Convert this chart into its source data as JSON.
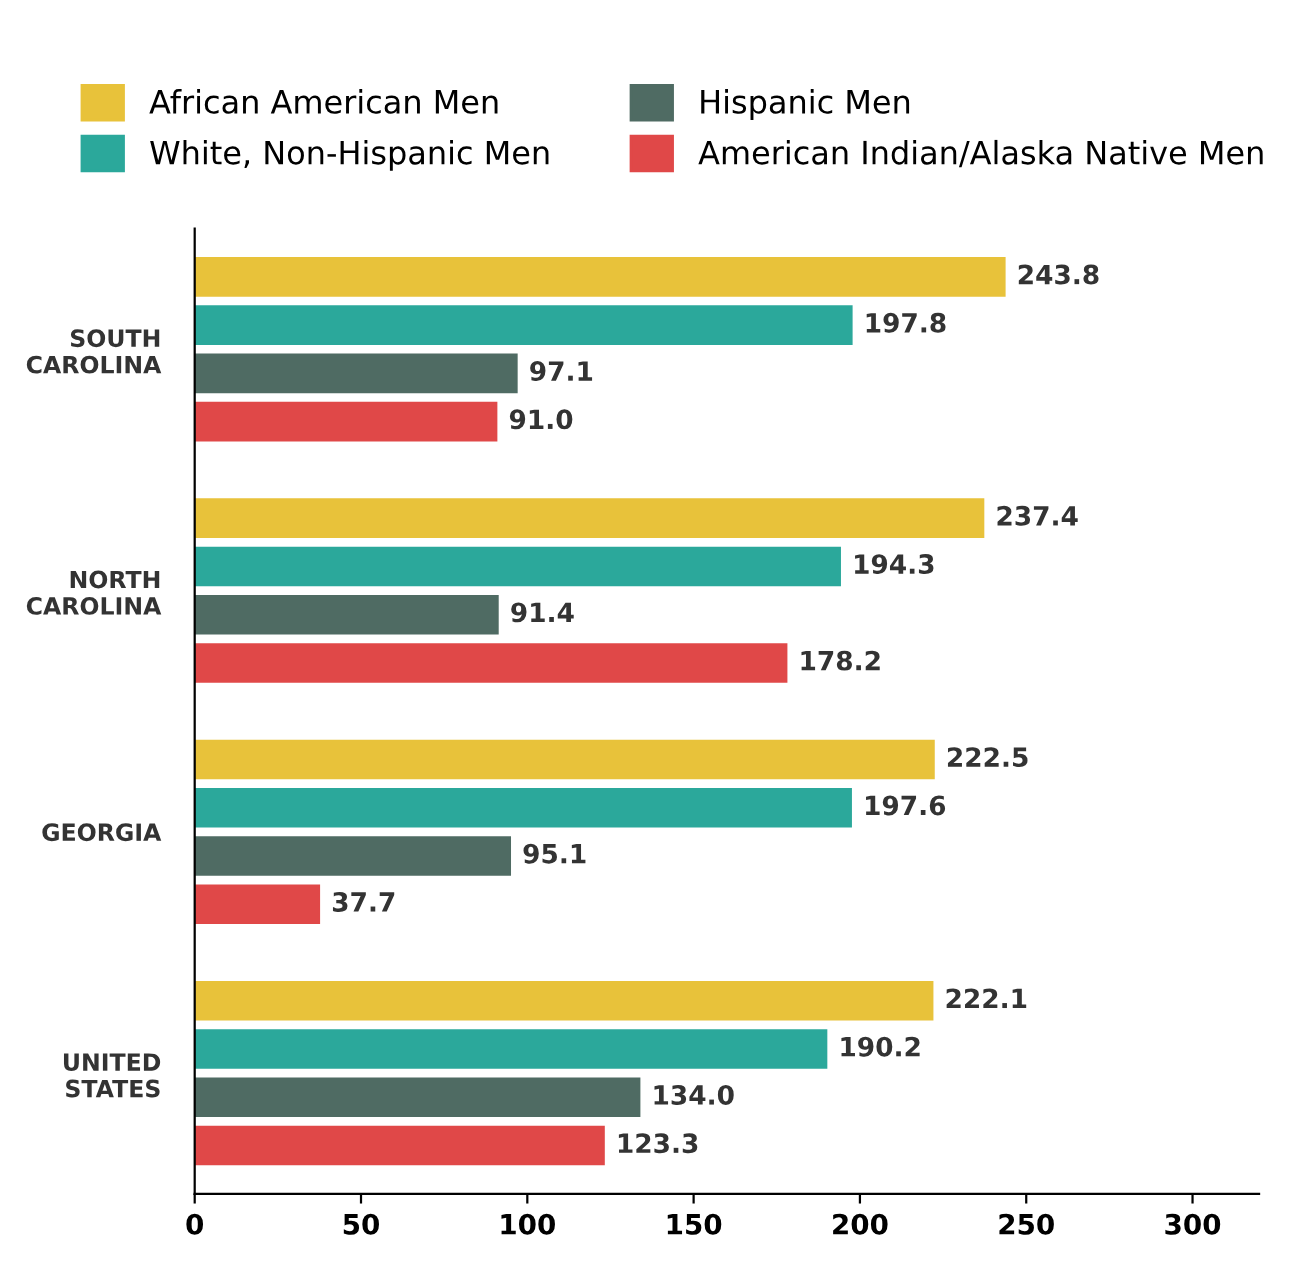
{
  "chart_data": {
    "type": "bar",
    "orientation": "horizontal",
    "categories": [
      "SOUTH\nCAROLINA",
      "NORTH\nCAROLINA",
      "GEORGIA",
      "UNITED\nSTATES"
    ],
    "series": [
      {
        "name": "African American Men",
        "color": "#e8c23a",
        "values": [
          243.8,
          237.4,
          222.5,
          222.1
        ],
        "value_labels": [
          "243.8",
          "237.4",
          "222.5",
          "222.1"
        ]
      },
      {
        "name": "White, Non-Hispanic Men",
        "color": "#2ba89b",
        "values": [
          197.8,
          194.3,
          197.6,
          190.2
        ],
        "value_labels": [
          "197.8",
          "194.3",
          "197.6",
          "190.2"
        ]
      },
      {
        "name": "Hispanic Men",
        "color": "#4f6b63",
        "values": [
          97.1,
          91.4,
          95.1,
          134.0
        ],
        "value_labels": [
          "97.1",
          "91.4",
          "95.1",
          "134.0"
        ]
      },
      {
        "name": "American Indian/Alaska Native Men",
        "color": "#e04848",
        "values": [
          91.0,
          178.2,
          37.7,
          123.3
        ],
        "value_labels": [
          "91.0",
          "178.2",
          "37.7",
          "123.3"
        ]
      }
    ],
    "xlim": [
      0,
      320
    ],
    "xticks": [
      0,
      50,
      100,
      150,
      200,
      250,
      300
    ],
    "grid": false,
    "legend": "top"
  }
}
